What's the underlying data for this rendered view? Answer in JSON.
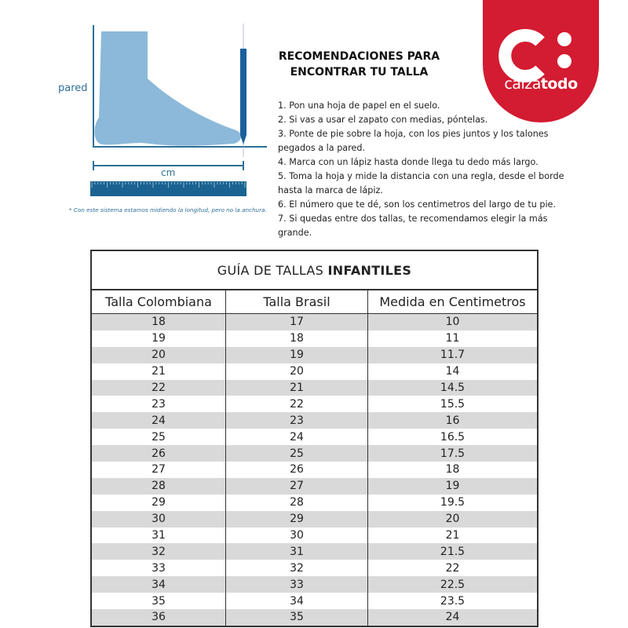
{
  "diagram": {
    "wall_label": "pared",
    "length_label": "cm",
    "note": "* Con este sistema estamos midiendo la longitud, pero no la anchura.",
    "colors": {
      "foot": "#8cb9d9",
      "line": "#2f6f99",
      "ruler": "#1a6391",
      "pencil": "#1a5f9c"
    }
  },
  "instructions": {
    "heading_line1": "RECOMENDACIONES PARA",
    "heading_line2": "ENCONTRAR TU TALLA",
    "steps": [
      "1. Pon una hoja de papel en el suelo.",
      "2. Si vas a usar el zapato con medias, póntelas.",
      "3. Ponte de pie sobre la hoja, con los pies juntos y los talones pegados a la pared.",
      "4. Marca con un lápiz hasta donde llega tu dedo más largo.",
      "5. Toma la hoja y mide la distancia con una regla, desde el borde hasta la marca de lápiz.",
      "6. El número que te dé, son los centimetros del largo de tu pie.",
      "7. Si quedas entre dos tallas, te recomendamos elegir la más grande."
    ]
  },
  "logo": {
    "text_light": "calza",
    "text_bold": "todo",
    "color": "#d31b31"
  },
  "table": {
    "title_normal": "GUÍA DE TALLAS ",
    "title_bold": "INFANTILES",
    "headers": [
      "Talla Colombiana",
      "Talla Brasil",
      "Medida en Centimetros"
    ],
    "rows": [
      [
        "18",
        "17",
        "10"
      ],
      [
        "19",
        "18",
        "11"
      ],
      [
        "20",
        "19",
        "11.7"
      ],
      [
        "21",
        "20",
        "14"
      ],
      [
        "22",
        "21",
        "14.5"
      ],
      [
        "23",
        "22",
        "15.5"
      ],
      [
        "24",
        "23",
        "16"
      ],
      [
        "25",
        "24",
        "16.5"
      ],
      [
        "26",
        "25",
        "17.5"
      ],
      [
        "27",
        "26",
        "18"
      ],
      [
        "28",
        "27",
        "19"
      ],
      [
        "29",
        "28",
        "19.5"
      ],
      [
        "30",
        "29",
        "20"
      ],
      [
        "31",
        "30",
        "21"
      ],
      [
        "32",
        "31",
        "21.5"
      ],
      [
        "33",
        "32",
        "22"
      ],
      [
        "34",
        "33",
        "22.5"
      ],
      [
        "35",
        "34",
        "23.5"
      ],
      [
        "36",
        "35",
        "24"
      ]
    ]
  }
}
